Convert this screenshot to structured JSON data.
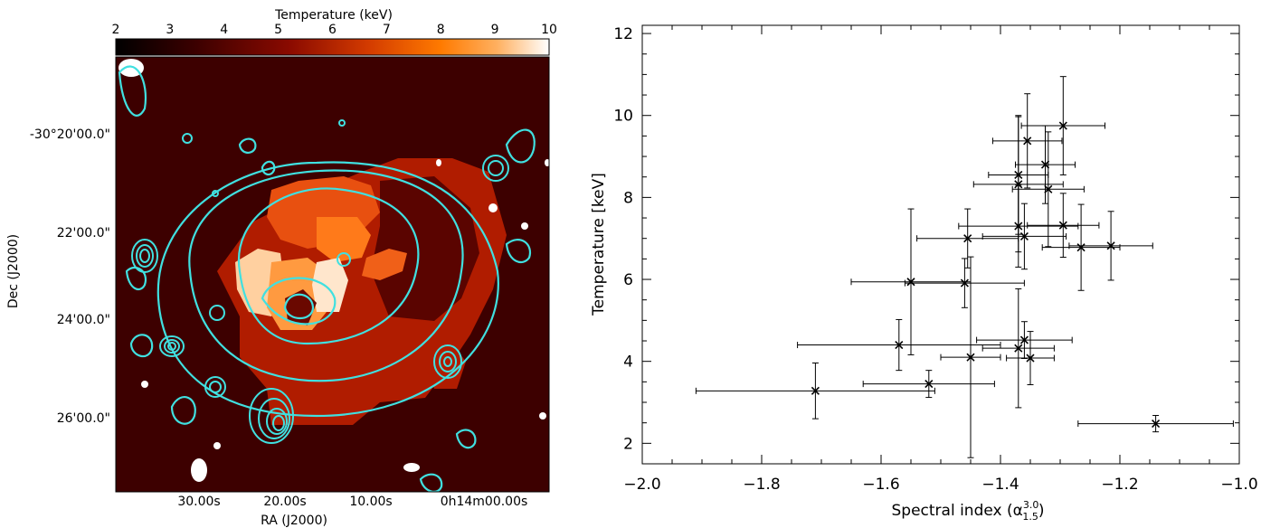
{
  "left_panel": {
    "colorbar_title": "Temperature (keV)",
    "colorbar_ticks": [
      "2",
      "3",
      "4",
      "5",
      "6",
      "7",
      "8",
      "9",
      "10"
    ],
    "colorbar_range": [
      2,
      10
    ],
    "xlabel": "RA (J2000)",
    "ylabel": "Dec (J2000)",
    "xticks": [
      "30.00s",
      "20.00s",
      "10.00s",
      "0h14m00.00s"
    ],
    "yticks": [
      "-30°20'00.0\"",
      "22'00.0\"",
      "24'00.0\"",
      "26'00.0\""
    ],
    "colors": {
      "background": "#3d0000",
      "contour": "#40e0e0",
      "low": "#000000",
      "mid": "#b01a00",
      "high": "#ff8000",
      "top": "#ffffff"
    }
  },
  "chart_data": {
    "type": "scatter",
    "title": "",
    "xlabel": "Spectral index (α",
    "xlabel_sup": "3.0",
    "xlabel_sub": "1.5",
    "xlabel_end": ")",
    "ylabel": "Temperature [keV]",
    "xlim": [
      -2.0,
      -1.0
    ],
    "ylim": [
      1.5,
      12.2
    ],
    "xticks": [
      -2.0,
      -1.8,
      -1.6,
      -1.4,
      -1.2,
      -1.0
    ],
    "xtick_labels": [
      "−2.0",
      "−1.8",
      "−1.6",
      "−1.4",
      "−1.2",
      "−1.0"
    ],
    "yticks": [
      2,
      4,
      6,
      8,
      10,
      12
    ],
    "ytick_labels": [
      "2",
      "4",
      "6",
      "8",
      "10",
      "12"
    ],
    "marker": "x",
    "points": [
      {
        "x": -1.71,
        "y": 3.28,
        "xerr": 0.2,
        "yerr": 0.68
      },
      {
        "x": -1.52,
        "y": 3.45,
        "xerr": 0.11,
        "yerr": 0.33
      },
      {
        "x": -1.57,
        "y": 4.4,
        "xerr": 0.17,
        "yerr": 0.62
      },
      {
        "x": -1.45,
        "y": 4.1,
        "xerr": 0.05,
        "yerr": 2.45
      },
      {
        "x": -1.36,
        "y": 4.52,
        "xerr": 0.08,
        "yerr": 0.45
      },
      {
        "x": -1.37,
        "y": 4.32,
        "xerr": 0.06,
        "yerr": 1.45
      },
      {
        "x": -1.35,
        "y": 4.08,
        "xerr": 0.04,
        "yerr": 0.65
      },
      {
        "x": -1.55,
        "y": 5.94,
        "xerr": 0.1,
        "yerr": 1.78
      },
      {
        "x": -1.46,
        "y": 5.91,
        "xerr": 0.1,
        "yerr": 0.6
      },
      {
        "x": -1.455,
        "y": 7.0,
        "xerr": 0.085,
        "yerr": 0.72
      },
      {
        "x": -1.36,
        "y": 7.05,
        "xerr": 0.07,
        "yerr": 0.8
      },
      {
        "x": -1.37,
        "y": 7.3,
        "xerr": 0.1,
        "yerr": 1.0
      },
      {
        "x": -1.295,
        "y": 7.32,
        "xerr": 0.06,
        "yerr": 0.78
      },
      {
        "x": -1.265,
        "y": 6.78,
        "xerr": 0.065,
        "yerr": 1.05
      },
      {
        "x": -1.215,
        "y": 6.82,
        "xerr": 0.07,
        "yerr": 0.84
      },
      {
        "x": -1.37,
        "y": 8.32,
        "xerr": 0.075,
        "yerr": 1.65
      },
      {
        "x": -1.37,
        "y": 8.55,
        "xerr": 0.05,
        "yerr": 1.45
      },
      {
        "x": -1.32,
        "y": 8.2,
        "xerr": 0.06,
        "yerr": 1.4
      },
      {
        "x": -1.325,
        "y": 8.8,
        "xerr": 0.05,
        "yerr": 0.95
      },
      {
        "x": -1.355,
        "y": 9.38,
        "xerr": 0.058,
        "yerr": 1.15
      },
      {
        "x": -1.295,
        "y": 9.75,
        "xerr": 0.07,
        "yerr": 1.2
      },
      {
        "x": -1.14,
        "y": 2.48,
        "xerr": 0.13,
        "yerr": 0.2
      }
    ]
  }
}
